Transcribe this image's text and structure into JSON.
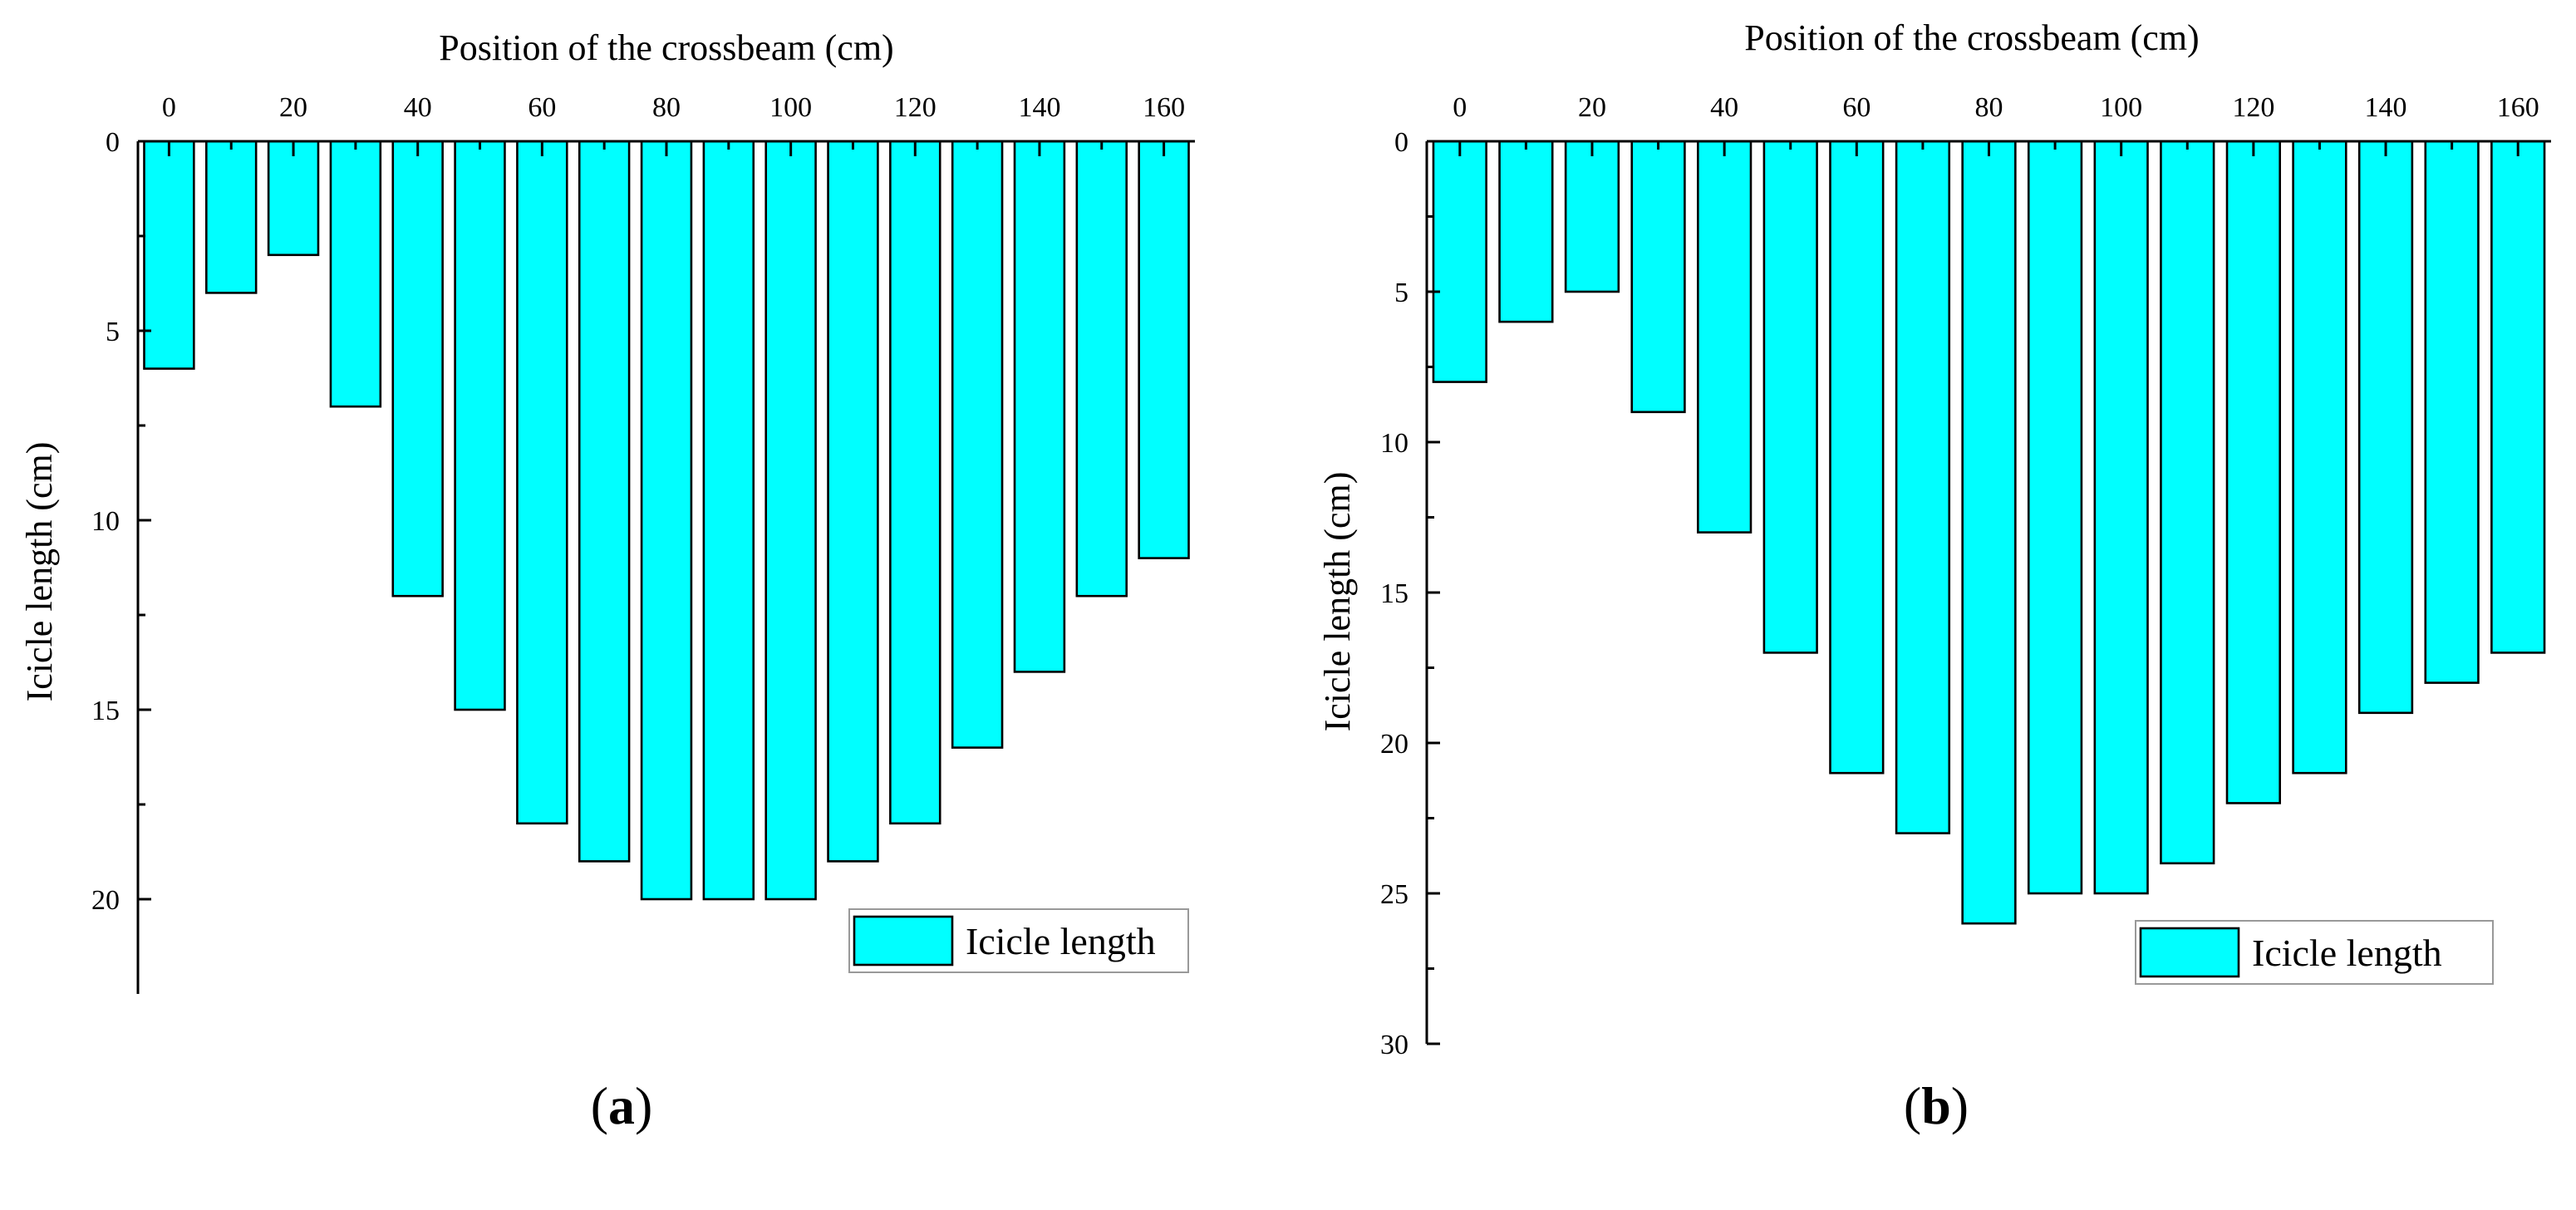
{
  "chart_data": [
    {
      "type": "bar",
      "panel_label": "(a)",
      "title": "",
      "xlabel": "Position of the crossbeam (cm)",
      "ylabel": "Icicle length (cm)",
      "xlim": [
        -5,
        165
      ],
      "ylim": [
        0,
        22.5
      ],
      "x_ticks": [
        0,
        20,
        40,
        60,
        80,
        100,
        120,
        140,
        160
      ],
      "y_ticks": [
        0,
        5,
        10,
        15,
        20
      ],
      "x": [
        0,
        10,
        20,
        30,
        40,
        50,
        60,
        70,
        80,
        90,
        100,
        110,
        120,
        130,
        140,
        150,
        160
      ],
      "values": [
        6,
        4,
        3,
        7,
        12,
        15,
        18,
        19,
        20,
        20,
        20,
        19,
        18,
        16,
        14,
        12,
        11
      ],
      "bar_color": "#00FFFF",
      "legend": [
        "Icicle length"
      ],
      "legend_position": "bottom-right",
      "x_axis_position": "top",
      "y_inverted": true
    },
    {
      "type": "bar",
      "panel_label": "(b)",
      "title": "",
      "xlabel": "Position of the crossbeam (cm)",
      "ylabel": "Icicle length (cm)",
      "xlim": [
        -5,
        165
      ],
      "ylim": [
        0,
        30
      ],
      "x_ticks": [
        0,
        20,
        40,
        60,
        80,
        100,
        120,
        140,
        160
      ],
      "y_ticks": [
        0,
        5,
        10,
        15,
        20,
        25,
        30
      ],
      "x": [
        0,
        10,
        20,
        30,
        40,
        50,
        60,
        70,
        80,
        90,
        100,
        110,
        120,
        130,
        140,
        150,
        160
      ],
      "values": [
        8,
        6,
        5,
        9,
        13,
        17,
        21,
        23,
        26,
        25,
        25,
        24,
        22,
        21,
        19,
        18,
        17
      ],
      "bar_color": "#00FFFF",
      "legend": [
        "Icicle length"
      ],
      "legend_position": "bottom-right",
      "x_axis_position": "top",
      "y_inverted": true
    }
  ]
}
